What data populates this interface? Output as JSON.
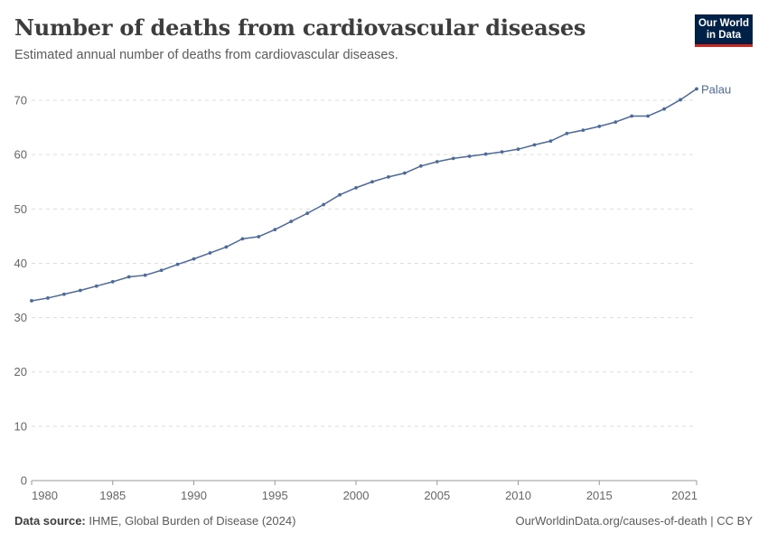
{
  "header": {
    "title": "Number of deaths from cardiovascular diseases",
    "subtitle": "Estimated annual number of deaths from cardiovascular diseases.",
    "logo_line1": "Our World",
    "logo_line2": "in Data"
  },
  "footer": {
    "source_label": "Data source:",
    "source_text": "IHME, Global Burden of Disease (2024)",
    "credit": "OurWorldinData.org/causes-of-death | CC BY"
  },
  "colors": {
    "series": "#4c6a9c",
    "grid": "#dddddd",
    "axis": "#999999",
    "logo_bg": "#002147",
    "logo_accent": "#ce261e"
  },
  "chart_data": {
    "type": "line",
    "ylim": [
      0,
      72
    ],
    "xlim": [
      1980,
      2021
    ],
    "yticks": [
      0,
      10,
      20,
      30,
      40,
      50,
      60,
      70
    ],
    "xticks": [
      1980,
      1985,
      1990,
      1995,
      2000,
      2005,
      2010,
      2015,
      2021
    ],
    "grid": true,
    "series": [
      {
        "name": "Palau",
        "x": [
          1980,
          1981,
          1982,
          1983,
          1984,
          1985,
          1986,
          1987,
          1988,
          1989,
          1990,
          1991,
          1992,
          1993,
          1994,
          1995,
          1996,
          1997,
          1998,
          1999,
          2000,
          2001,
          2002,
          2003,
          2004,
          2005,
          2006,
          2007,
          2008,
          2009,
          2010,
          2011,
          2012,
          2013,
          2014,
          2015,
          2016,
          2017,
          2018,
          2019,
          2020,
          2021
        ],
        "y": [
          33.1,
          33.6,
          34.3,
          35.0,
          35.8,
          36.6,
          37.5,
          37.8,
          38.7,
          39.8,
          40.8,
          41.9,
          43.0,
          44.5,
          44.9,
          46.2,
          47.7,
          49.2,
          50.8,
          52.6,
          53.9,
          55.0,
          55.9,
          56.6,
          57.9,
          58.7,
          59.3,
          59.7,
          60.1,
          60.5,
          61.0,
          61.8,
          62.5,
          63.9,
          64.5,
          65.2,
          66.0,
          67.1,
          67.1,
          68.4,
          70.1,
          72.1
        ]
      }
    ]
  }
}
